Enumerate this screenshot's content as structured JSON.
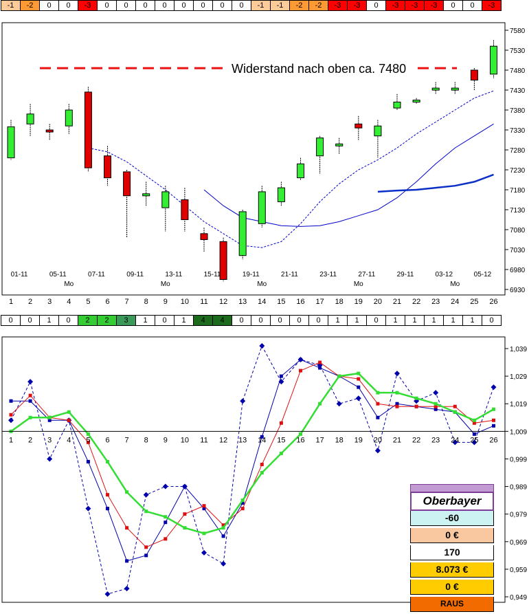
{
  "colors": {
    "neg1": "#ffcc99",
    "neg2": "#ff9933",
    "neg3": "#ff0000",
    "pos2": "#33cc33",
    "pos3": "#3b9a5a",
    "pos4": "#1c6b1c",
    "bull": "#33ee33",
    "bear": "#e00000"
  },
  "top_strip": [
    "-1",
    "-2",
    "0",
    "0",
    "-3",
    "0",
    "0",
    "0",
    "0",
    "0",
    "0",
    "0",
    "0",
    "-1",
    "-1",
    "-2",
    "-2",
    "-3",
    "-3",
    "0",
    "-3",
    "-3",
    "-3",
    "0",
    "0",
    "-3"
  ],
  "top_strip_levels": [
    -1,
    -2,
    0,
    0,
    -3,
    0,
    0,
    0,
    0,
    0,
    0,
    0,
    0,
    -1,
    -1,
    -2,
    -2,
    -3,
    -3,
    0,
    -3,
    -3,
    -3,
    0,
    0,
    -3
  ],
  "mid_strip": [
    "0",
    "0",
    "1",
    "0",
    "2",
    "2",
    "3",
    "1",
    "0",
    "1",
    "4",
    "4",
    "0",
    "0",
    "0",
    "0",
    "0",
    "1",
    "1",
    "0",
    "1",
    "1",
    "1",
    "1",
    "1",
    "0"
  ],
  "mid_strip_levels": [
    0,
    0,
    1,
    0,
    2,
    2,
    3,
    1,
    0,
    1,
    4,
    4,
    0,
    0,
    0,
    0,
    0,
    1,
    1,
    0,
    1,
    1,
    1,
    1,
    1,
    0
  ],
  "chart_data": [
    {
      "type": "candlestick",
      "title": "",
      "annotation": "Widerstand nach oben ca. 7480",
      "resistance_level": 7485,
      "ylim": [
        6930,
        7600
      ],
      "y_ticks": [
        "7580",
        "7530",
        "7480",
        "7430",
        "7380",
        "7330",
        "7280",
        "7230",
        "7180",
        "7130",
        "7080",
        "7030",
        "6980",
        "6930"
      ],
      "y_tick_values": [
        7580,
        7530,
        7480,
        7430,
        7380,
        7330,
        7280,
        7230,
        7180,
        7130,
        7080,
        7030,
        6980,
        6930
      ],
      "x_index": [
        1,
        2,
        3,
        4,
        5,
        6,
        7,
        8,
        9,
        10,
        11,
        12,
        13,
        14,
        15,
        16,
        17,
        18,
        19,
        20,
        21,
        22,
        23,
        24,
        25,
        26
      ],
      "x_index_labels": [
        "1",
        "2",
        "3",
        "4",
        "5",
        "6",
        "7",
        "8",
        "9",
        "10",
        "11",
        "12",
        "13",
        "14",
        "15",
        "16",
        "17",
        "18",
        "19",
        "20",
        "21",
        "22",
        "23",
        "24",
        "25",
        "26"
      ],
      "date_labels": [
        "01-11",
        "05-11",
        "07-11",
        "09-11",
        "13-11",
        "15-11",
        "19-11",
        "21-11",
        "23-11",
        "27-11",
        "29-11",
        "03-12",
        "05-12"
      ],
      "date_label_positions": [
        1.5,
        3.5,
        5.5,
        7.5,
        9.5,
        11.5,
        13.5,
        15.5,
        17.5,
        19.5,
        21.5,
        23.5,
        25.5
      ],
      "weekday_labels": [
        "Mo",
        "Mo",
        "Mo",
        "Mo",
        "Mo"
      ],
      "weekday_positions": [
        4,
        9,
        14,
        19,
        24
      ],
      "candles": [
        {
          "o": 7260,
          "h": 7355,
          "l": 7255,
          "c": 7338
        },
        {
          "o": 7345,
          "h": 7395,
          "l": 7315,
          "c": 7370
        },
        {
          "o": 7330,
          "h": 7345,
          "l": 7305,
          "c": 7325
        },
        {
          "o": 7340,
          "h": 7395,
          "l": 7320,
          "c": 7380
        },
        {
          "o": 7425,
          "h": 7438,
          "l": 7225,
          "c": 7235
        },
        {
          "o": 7265,
          "h": 7290,
          "l": 7190,
          "c": 7210
        },
        {
          "o": 7225,
          "h": 7230,
          "l": 7060,
          "c": 7165
        },
        {
          "o": 7165,
          "h": 7200,
          "l": 7140,
          "c": 7170
        },
        {
          "o": 7135,
          "h": 7190,
          "l": 7075,
          "c": 7175
        },
        {
          "o": 7155,
          "h": 7185,
          "l": 7075,
          "c": 7105
        },
        {
          "o": 7070,
          "h": 7085,
          "l": 7025,
          "c": 7055
        },
        {
          "o": 7050,
          "h": 7060,
          "l": 6950,
          "c": 6955
        },
        {
          "o": 7015,
          "h": 7130,
          "l": 7005,
          "c": 7125
        },
        {
          "o": 7095,
          "h": 7190,
          "l": 7085,
          "c": 7175
        },
        {
          "o": 7150,
          "h": 7200,
          "l": 7140,
          "c": 7185
        },
        {
          "o": 7210,
          "h": 7260,
          "l": 7205,
          "c": 7245
        },
        {
          "o": 7265,
          "h": 7315,
          "l": 7220,
          "c": 7310
        },
        {
          "o": 7290,
          "h": 7310,
          "l": 7270,
          "c": 7295
        },
        {
          "o": 7345,
          "h": 7365,
          "l": 7305,
          "c": 7335
        },
        {
          "o": 7315,
          "h": 7355,
          "l": 7260,
          "c": 7340
        },
        {
          "o": 7385,
          "h": 7420,
          "l": 7380,
          "c": 7400
        },
        {
          "o": 7400,
          "h": 7410,
          "l": 7395,
          "c": 7405
        },
        {
          "o": 7430,
          "h": 7450,
          "l": 7420,
          "c": 7435
        },
        {
          "o": 7430,
          "h": 7450,
          "l": 7420,
          "c": 7435
        },
        {
          "o": 7480,
          "h": 7485,
          "l": 7430,
          "c": 7455
        },
        {
          "o": 7470,
          "h": 7555,
          "l": 7460,
          "c": 7540
        }
      ],
      "series": [
        {
          "name": "dashed MA",
          "style": "dashed",
          "color": "#0000cc",
          "x": [
            5,
            6,
            7,
            8,
            9,
            10,
            11,
            12,
            13,
            14,
            15,
            16,
            17,
            18,
            19,
            20,
            21,
            22,
            23,
            24,
            25,
            26
          ],
          "values": [
            7285,
            7275,
            7250,
            7215,
            7180,
            7140,
            7100,
            7070,
            7040,
            7035,
            7050,
            7095,
            7150,
            7195,
            7230,
            7255,
            7285,
            7320,
            7350,
            7380,
            7410,
            7428
          ]
        },
        {
          "name": "MA medium",
          "style": "solid",
          "color": "#0000cc",
          "x": [
            11,
            12,
            13,
            14,
            15,
            16,
            17,
            18,
            19,
            20,
            21,
            22,
            23,
            24,
            25,
            26
          ],
          "values": [
            7180,
            7140,
            7110,
            7100,
            7090,
            7088,
            7090,
            7100,
            7115,
            7130,
            7160,
            7200,
            7245,
            7285,
            7315,
            7345
          ]
        },
        {
          "name": "MA long",
          "style": "solid-thick",
          "color": "#0a2ec8",
          "x": [
            20,
            21,
            22,
            23,
            24,
            25,
            26
          ],
          "values": [
            7175,
            7178,
            7180,
            7185,
            7190,
            7200,
            7218
          ]
        }
      ]
    },
    {
      "type": "line",
      "title": "",
      "ylim": [
        0.949,
        1.042
      ],
      "baseline": 1.009,
      "y_ticks": [
        "1,039",
        "1,029",
        "1,019",
        "1,009",
        "0,999",
        "0,989",
        "0,979",
        "0,969",
        "0,959",
        "0,949"
      ],
      "y_tick_values": [
        1.039,
        1.029,
        1.019,
        1.009,
        0.999,
        0.989,
        0.979,
        0.969,
        0.959,
        0.949
      ],
      "x_index_labels": [
        "1",
        "2",
        "3",
        "4",
        "5",
        "6",
        "7",
        "8",
        "9",
        "10",
        "11",
        "12",
        "13",
        "14",
        "15",
        "16",
        "17",
        "18",
        "19",
        "20",
        "21",
        "22",
        "23",
        "24",
        "25",
        "26"
      ],
      "series": [
        {
          "name": "dashed diamonds",
          "style": "dashed",
          "color": "#0000aa",
          "marker": "diamond",
          "values": [
            1.013,
            1.027,
            0.999,
            1.013,
            0.981,
            0.95,
            0.952,
            0.986,
            0.989,
            0.989,
            0.965,
            0.961,
            1.02,
            1.04,
            1.027,
            1.035,
            1.033,
            1.019,
            1.021,
            1.002,
            1.03,
            1.02,
            1.023,
            1.005,
            1.005,
            1.025
          ]
        },
        {
          "name": "blue squares",
          "style": "solid",
          "color": "#0000aa",
          "marker": "square",
          "values": [
            1.02,
            1.02,
            1.013,
            1.013,
            0.998,
            0.981,
            0.962,
            0.964,
            0.976,
            0.989,
            0.981,
            0.971,
            0.983,
            1.007,
            1.029,
            1.035,
            1.032,
            1.029,
            1.025,
            1.014,
            1.019,
            1.018,
            1.017,
            1.016,
            1.008,
            1.011
          ]
        },
        {
          "name": "red squares",
          "style": "solid",
          "color": "#dd1111",
          "marker": "square",
          "values": [
            1.015,
            1.022,
            1.014,
            1.013,
            1.005,
            0.986,
            0.974,
            0.967,
            0.97,
            0.979,
            0.982,
            0.975,
            0.981,
            0.997,
            1.012,
            1.031,
            1.034,
            1.029,
            1.028,
            1.019,
            1.018,
            1.018,
            1.018,
            1.018,
            1.012,
            1.013
          ]
        },
        {
          "name": "green squares",
          "style": "solid-thick",
          "color": "#33dd33",
          "marker": "square",
          "values": [
            1.009,
            1.014,
            1.014,
            1.016,
            1.008,
            0.998,
            0.987,
            0.98,
            0.978,
            0.974,
            0.972,
            0.974,
            0.984,
            0.994,
            1.001,
            1.008,
            1.019,
            1.029,
            1.03,
            1.023,
            1.023,
            1.021,
            1.019,
            1.016,
            1.013,
            1.017
          ]
        }
      ]
    }
  ],
  "panel": {
    "title": "Oberbayer",
    "rows": [
      {
        "text": "-60",
        "bg": "#ccf2f2"
      },
      {
        "text": "0 €",
        "bg": "#f9c8a0"
      },
      {
        "text": "170",
        "bg": "#ffffff"
      },
      {
        "text": "8.073 €",
        "bg": "#ffcc00"
      },
      {
        "text": "0 €",
        "bg": "#ffcc00"
      },
      {
        "text": "RAUS",
        "bg": "#f26b00"
      }
    ]
  }
}
